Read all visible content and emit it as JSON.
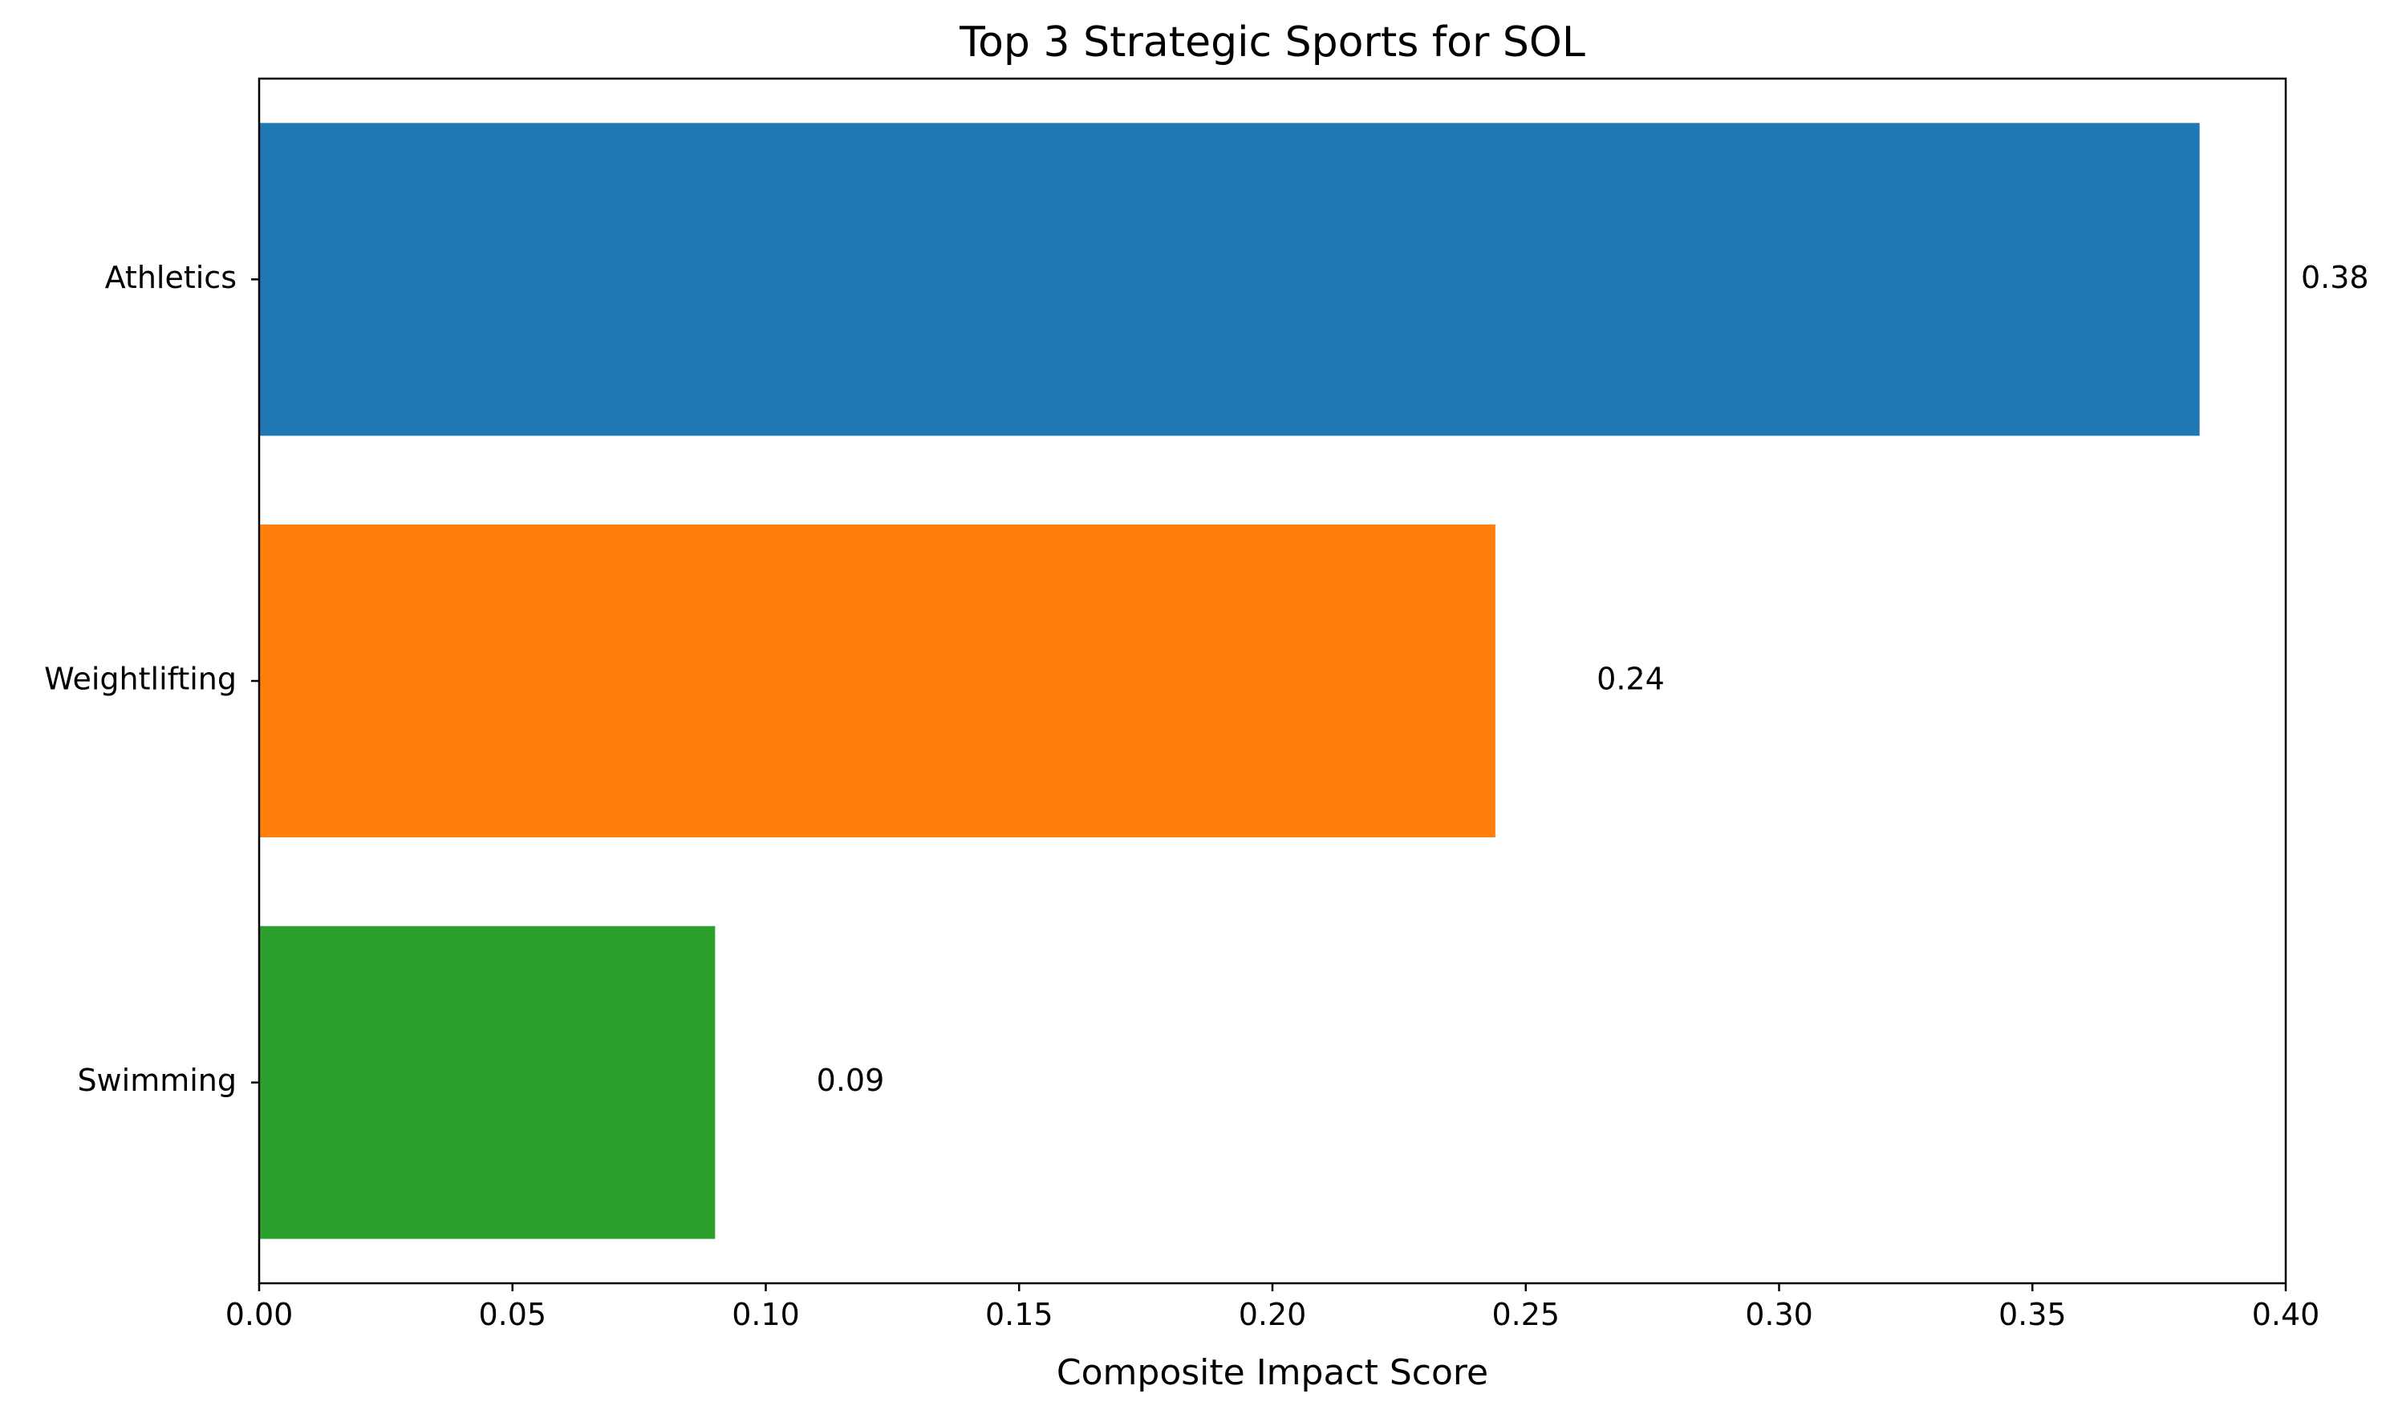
{
  "chart_data": {
    "type": "bar",
    "orientation": "horizontal",
    "title": "Top 3 Strategic Sports for SOL",
    "xlabel": "Composite Impact Score",
    "ylabel": "",
    "xlim": [
      0,
      0.4
    ],
    "x_ticks": [
      0.0,
      0.05,
      0.1,
      0.15,
      0.2,
      0.25,
      0.3,
      0.35,
      0.4
    ],
    "x_tick_labels": [
      "0.00",
      "0.05",
      "0.10",
      "0.15",
      "0.20",
      "0.25",
      "0.30",
      "0.35",
      "0.40"
    ],
    "categories": [
      "Athletics",
      "Weightlifting",
      "Swimming"
    ],
    "values": [
      0.383,
      0.244,
      0.09
    ],
    "data_labels": [
      "0.38",
      "0.24",
      "0.09"
    ],
    "colors": [
      "#1f77b4",
      "#ff7f0e",
      "#2ca02c"
    ],
    "grid": false,
    "legend": "none"
  }
}
